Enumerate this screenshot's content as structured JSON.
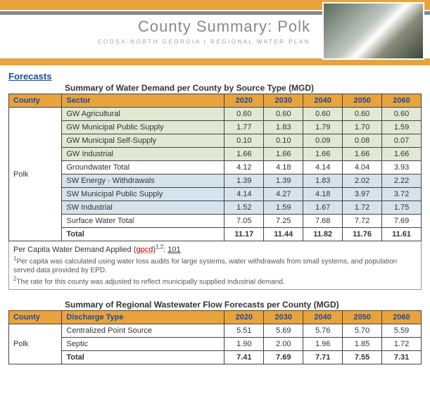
{
  "colors": {
    "accent": "#e8a33d",
    "hdr_text": "#1a4aa0",
    "gw": "#dfe9d3",
    "sw": "#d5e3ec"
  },
  "header": {
    "title": "County Summary: Polk",
    "subtitle": "COOSA-NORTH GEORGIA | REGIONAL WATER PLAN"
  },
  "section_forecasts": "Forecasts",
  "table1": {
    "title": "Summary of Water Demand per County by Source Type (MGD)",
    "headers": {
      "county": "County",
      "sector": "Sector",
      "years": [
        "2020",
        "2030",
        "2040",
        "2050",
        "2060"
      ]
    },
    "county": "Polk",
    "rows": [
      {
        "label": "GW Agricultural",
        "kind": "gw",
        "vals": [
          "0.60",
          "0.60",
          "0.60",
          "0.60",
          "0.60"
        ]
      },
      {
        "label": "GW Municipal Public Supply",
        "kind": "gw",
        "vals": [
          "1.77",
          "1.83",
          "1.79",
          "1.70",
          "1.59"
        ]
      },
      {
        "label": "GW Municipal Self-Supply",
        "kind": "gw",
        "vals": [
          "0.10",
          "0.10",
          "0.09",
          "0.08",
          "0.07"
        ]
      },
      {
        "label": "GW Industrial",
        "kind": "gw",
        "vals": [
          "1.66",
          "1.66",
          "1.66",
          "1.66",
          "1.66"
        ]
      },
      {
        "label": "Groundwater Total",
        "kind": "subtot",
        "vals": [
          "4.12",
          "4.18",
          "4.14",
          "4.04",
          "3.93"
        ]
      },
      {
        "label": "SW Energy - Withdrawals",
        "kind": "sw",
        "vals": [
          "1.39",
          "1.39",
          "1.83",
          "2.02",
          "2.22"
        ]
      },
      {
        "label": "SW Municipal Public Supply",
        "kind": "sw",
        "vals": [
          "4.14",
          "4.27",
          "4.18",
          "3.97",
          "3.72"
        ]
      },
      {
        "label": "SW Industrial",
        "kind": "sw",
        "vals": [
          "1.52",
          "1.59",
          "1.67",
          "1.72",
          "1.75"
        ]
      },
      {
        "label": "Surface Water Total",
        "kind": "subtot",
        "vals": [
          "7.05",
          "7.25",
          "7.68",
          "7.72",
          "7.69"
        ]
      },
      {
        "label": "Total",
        "kind": "tot",
        "vals": [
          "11.17",
          "11.44",
          "11.82",
          "11.76",
          "11.61"
        ]
      }
    ],
    "footnotes": {
      "per_capita_pre": "Per Capita Water Demand Applied (",
      "per_capita_red": "gpcd",
      "per_capita_post": ")",
      "per_capita_sup": "1,2",
      "per_capita_colon": ":  ",
      "per_capita_val": "101",
      "f1": "Per capita was calculated using water loss audits for large systems, water withdrawals from small systems, and population served data provided by EPD.",
      "f2": "The rate for this county was adjusted to reflect municipally supplied industrial demand."
    }
  },
  "table2": {
    "title": "Summary of Regional Wastewater Flow Forecasts per County (MGD)",
    "headers": {
      "county": "County",
      "discharge": "Discharge Type",
      "years": [
        "2020",
        "2030",
        "2040",
        "2050",
        "2060"
      ]
    },
    "county": "Polk",
    "rows": [
      {
        "label": "Centralized Point Source",
        "kind": "",
        "vals": [
          "5.51",
          "5.69",
          "5.76",
          "5.70",
          "5.59"
        ]
      },
      {
        "label": "Septic",
        "kind": "",
        "vals": [
          "1.90",
          "2.00",
          "1.96",
          "1.85",
          "1.72"
        ]
      },
      {
        "label": "Total",
        "kind": "tot",
        "vals": [
          "7.41",
          "7.69",
          "7.71",
          "7.55",
          "7.31"
        ]
      }
    ]
  }
}
